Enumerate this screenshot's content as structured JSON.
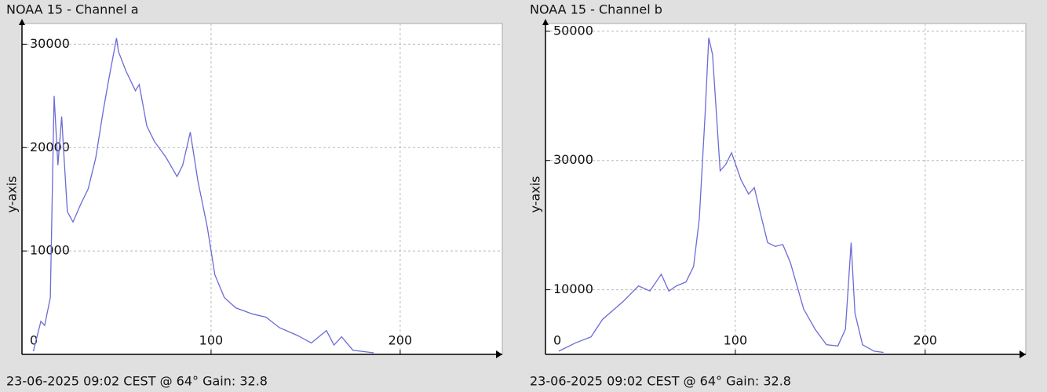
{
  "chart_data": [
    {
      "type": "line",
      "title": "NOAA 15 - Channel a",
      "y_label": "y-axis",
      "caption": "23-06-2025 09:02 CEST @ 64° Gain: 32.8",
      "color": "#6b6bd6",
      "grid": true,
      "xlim": [
        0,
        254
      ],
      "ylim": [
        0,
        32000
      ],
      "xticks": [
        0,
        100,
        200
      ],
      "yticks": [
        10000,
        20000,
        30000
      ],
      "x": [
        6,
        10,
        12,
        15,
        16,
        17,
        19,
        21,
        22,
        24,
        27,
        31,
        35,
        39,
        43,
        46,
        50,
        51,
        55,
        60,
        62,
        66,
        70,
        76,
        82,
        85,
        89,
        93,
        98,
        102,
        107,
        113,
        122,
        129,
        136,
        146,
        153,
        161,
        165,
        169,
        175,
        186
      ],
      "values": [
        300,
        3200,
        2800,
        5500,
        15300,
        25000,
        18300,
        23000,
        19800,
        13800,
        12800,
        14500,
        16000,
        19000,
        23600,
        26700,
        30600,
        29300,
        27400,
        25500,
        26100,
        22100,
        20600,
        19100,
        17200,
        18300,
        21500,
        16800,
        12300,
        7700,
        5500,
        4500,
        3900,
        3600,
        2600,
        1800,
        1100,
        2300,
        900,
        1700,
        400,
        150
      ]
    },
    {
      "type": "line",
      "title": "NOAA 15 - Channel b",
      "y_label": "y-axis",
      "caption": "23-06-2025 09:02 CEST @ 64° Gain: 32.8",
      "color": "#6b6bd6",
      "grid": true,
      "xlim": [
        0,
        253
      ],
      "ylim": [
        0,
        51200
      ],
      "xticks": [
        0,
        100,
        200
      ],
      "yticks": [
        10000,
        30000,
        50000
      ],
      "x": [
        7,
        16,
        24,
        30,
        41,
        49,
        55,
        61,
        65,
        69,
        74,
        78,
        81,
        84,
        86,
        88,
        92,
        95,
        98,
        103,
        107,
        110,
        113,
        117,
        121,
        125,
        129,
        136,
        142,
        148,
        154,
        158,
        161,
        163,
        167,
        173,
        178
      ],
      "values": [
        500,
        1800,
        2700,
        5400,
        8200,
        10600,
        9800,
        12400,
        9800,
        10600,
        11200,
        13600,
        20900,
        36700,
        49000,
        46400,
        28400,
        29400,
        31200,
        27000,
        24800,
        25800,
        22100,
        17300,
        16700,
        17000,
        14200,
        7000,
        3900,
        1500,
        1300,
        3900,
        17300,
        6400,
        1500,
        500,
        300
      ]
    }
  ]
}
